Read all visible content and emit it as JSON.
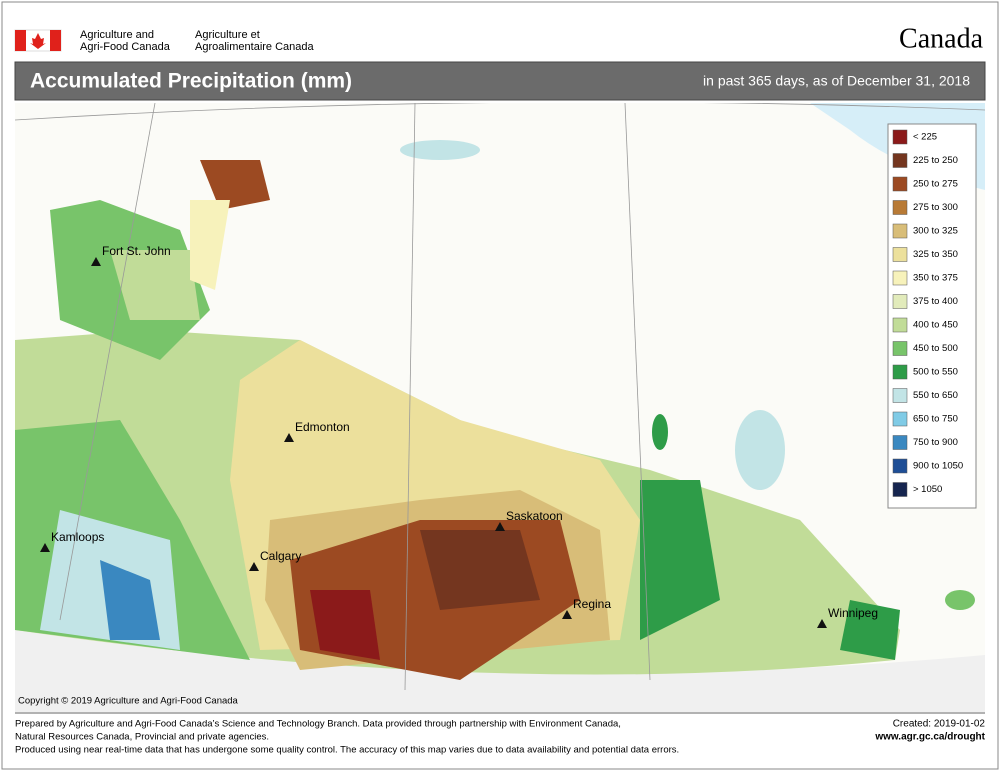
{
  "header": {
    "department_en": [
      "Agriculture and",
      "Agri-Food Canada"
    ],
    "department_fr": [
      "Agriculture et",
      "Agroalimentaire Canada"
    ],
    "wordmark": "Canada"
  },
  "title": "Accumulated Precipitation (mm)",
  "subtitle": "in past 365 days, as of December 31, 2018",
  "legend": [
    {
      "label": "< 225",
      "color": "#8b1a1a"
    },
    {
      "label": "225 to 250",
      "color": "#74361f"
    },
    {
      "label": "250 to 275",
      "color": "#9c4a22"
    },
    {
      "label": "275 to 300",
      "color": "#b87a35"
    },
    {
      "label": "300 to 325",
      "color": "#d8bd78"
    },
    {
      "label": "325 to 350",
      "color": "#ece09c"
    },
    {
      "label": "350 to 375",
      "color": "#f7f2bb"
    },
    {
      "label": "375 to 400",
      "color": "#e2ebbb"
    },
    {
      "label": "400 to 450",
      "color": "#c1dc98"
    },
    {
      "label": "450 to 500",
      "color": "#78c46a"
    },
    {
      "label": "500 to 550",
      "color": "#2e9c48"
    },
    {
      "label": "550 to 650",
      "color": "#c2e4e6"
    },
    {
      "label": "650 to 750",
      "color": "#80cbe6"
    },
    {
      "label": "750 to 900",
      "color": "#3a88c0"
    },
    {
      "label": "900 to 1050",
      "color": "#1e4e96"
    },
    {
      "label": "> 1050",
      "color": "#16254f"
    }
  ],
  "cities": [
    "Fort St. John",
    "Edmonton",
    "Kamloops",
    "Calgary",
    "Saskatoon",
    "Regina",
    "Winnipeg"
  ],
  "copyright": "Copyright © 2019 Agriculture and Agri-Food Canada",
  "footer": {
    "lines": [
      "Prepared by Agriculture and Agri-Food Canada’s Science and Technology Branch. Data provided through partnership with Environment Canada,",
      "Natural Resources Canada, Provincial and private agencies.",
      "Produced using near real-time data that has undergone some quality control. The accuracy of this map varies due to data availability and potential data errors."
    ],
    "created": "Created: 2019-01-02",
    "url": "www.agr.gc.ca/drought"
  }
}
